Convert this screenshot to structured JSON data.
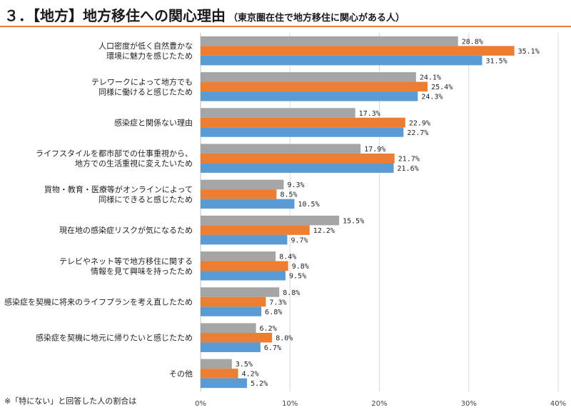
{
  "title": {
    "main": "３．【地方】地方移住への関心理由",
    "sub": "（東京圏在住で地方移住に関心がある人）"
  },
  "footnote": "※「特にない」と回答した人の割合は",
  "colors": {
    "accent": "#ED7D31",
    "series": [
      "#A5A5A5",
      "#ED7D31",
      "#5B9BD5"
    ]
  },
  "chart_data": {
    "type": "bar",
    "orientation": "horizontal",
    "categories": [
      [
        "人口密度が低く自然豊かな",
        "環境に魅力を感じたため"
      ],
      [
        "テレワークによって地方でも",
        "同様に働けると感じたため"
      ],
      [
        "感染症と関係ない理由"
      ],
      [
        "ライフスタイルを都市部での仕事重視から、",
        "地方での生活重視に変えたいため"
      ],
      [
        "買物・教育・医療等がオンラインによって",
        "同様にできると感じたため"
      ],
      [
        "現在地の感染症リスクが気になるため"
      ],
      [
        "テレビやネット等で地方移住に関する",
        "情報を見て興味を持ったため"
      ],
      [
        "感染症を契機に将来のライフプランを考え直したため"
      ],
      [
        "感染症を契機に地元に帰りたいと感じたため"
      ],
      [
        "その他"
      ]
    ],
    "series": [
      {
        "values": [
          28.8,
          24.1,
          17.3,
          17.9,
          9.3,
          15.5,
          8.4,
          8.8,
          6.2,
          3.5
        ]
      },
      {
        "values": [
          35.1,
          25.4,
          22.9,
          21.7,
          8.5,
          12.2,
          9.8,
          7.3,
          8.0,
          4.2
        ]
      },
      {
        "values": [
          31.5,
          24.3,
          22.7,
          21.6,
          10.5,
          9.7,
          9.5,
          6.8,
          6.7,
          5.2
        ]
      }
    ],
    "value_suffix": "%",
    "xlim": [
      0,
      40
    ],
    "xticks": [
      "0%",
      "10%",
      "20%",
      "30%",
      "40%"
    ],
    "grid": true
  }
}
